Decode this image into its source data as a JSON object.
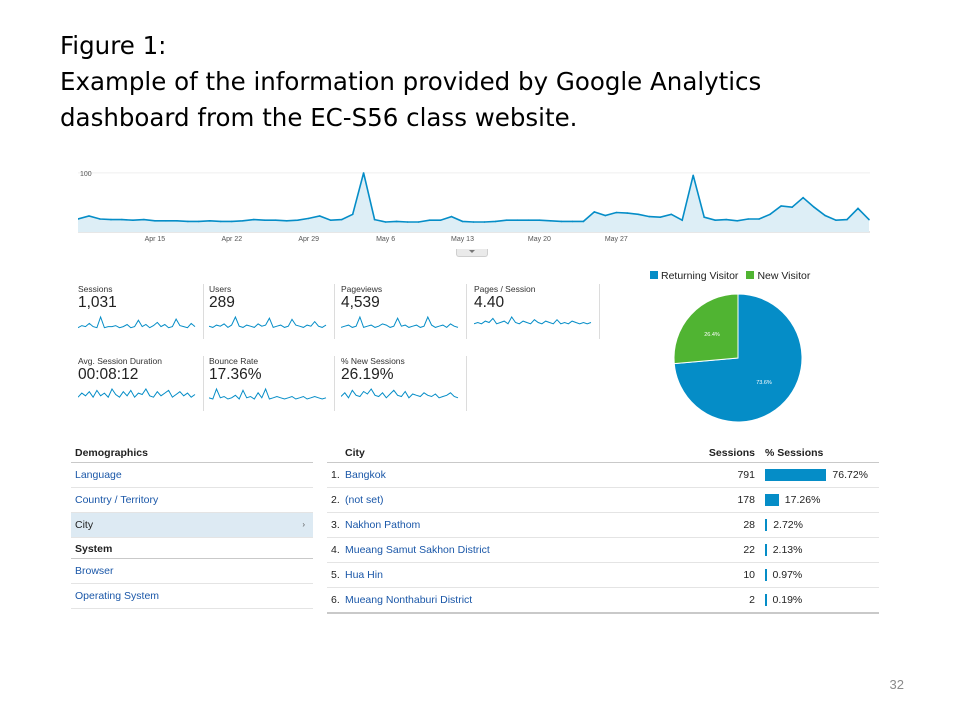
{
  "slide": {
    "title_lines": [
      "Figure 1:",
      "Example of the information provided by Google Analytics",
      "dashboard from the EC-S56 class website."
    ],
    "page_number": "32"
  },
  "timeline": {
    "y_label": "100",
    "x_labels": [
      "Apr 15",
      "Apr 22",
      "Apr 29",
      "May 6",
      "May 13",
      "May 20",
      "May 27"
    ],
    "series": [
      22,
      27,
      22,
      21,
      21,
      20,
      21,
      19,
      19,
      19,
      18,
      18,
      19,
      18,
      18,
      19,
      21,
      20,
      20,
      19,
      20,
      23,
      27,
      20,
      21,
      30,
      100,
      21,
      17,
      18,
      17,
      17,
      20,
      20,
      26,
      18,
      17,
      17,
      18,
      20,
      20,
      20,
      20,
      19,
      18,
      18,
      18,
      34,
      28,
      33,
      32,
      30,
      26,
      25,
      30,
      20,
      96,
      25,
      20,
      21,
      19,
      22,
      22,
      30,
      44,
      42,
      58,
      42,
      28,
      20,
      21,
      40,
      21
    ],
    "ymax": 110,
    "fill": "#ddeef6",
    "line": "#058dc7"
  },
  "metrics": [
    {
      "label": "Sessions",
      "value": "1,031",
      "spark": [
        4,
        6,
        5,
        8,
        5,
        4,
        14,
        4,
        5,
        5,
        6,
        4,
        5,
        7,
        4,
        5,
        11,
        5,
        7,
        4,
        6,
        9,
        5,
        7,
        4,
        5,
        12,
        6,
        5,
        4,
        8,
        5
      ]
    },
    {
      "label": "Users",
      "value": "289",
      "spark": [
        5,
        4,
        6,
        5,
        7,
        4,
        6,
        13,
        5,
        4,
        6,
        5,
        4,
        7,
        5,
        6,
        12,
        4,
        5,
        6,
        4,
        5,
        11,
        6,
        5,
        4,
        6,
        5,
        9,
        5,
        4,
        6
      ]
    },
    {
      "label": "Pageviews",
      "value": "4,539",
      "spark": [
        4,
        5,
        6,
        4,
        5,
        13,
        4,
        5,
        6,
        4,
        5,
        7,
        6,
        4,
        5,
        12,
        5,
        6,
        4,
        5,
        6,
        4,
        5,
        13,
        6,
        4,
        5,
        6,
        4,
        7,
        5,
        4
      ]
    },
    {
      "label": "Pages / Session",
      "value": "4.40",
      "spark": [
        6,
        7,
        6,
        8,
        7,
        10,
        6,
        7,
        8,
        6,
        11,
        7,
        6,
        8,
        7,
        6,
        9,
        7,
        6,
        8,
        7,
        6,
        9,
        6,
        7,
        6,
        8,
        7,
        6,
        7,
        6,
        7
      ]
    },
    {
      "label": "Avg. Session Duration",
      "value": "00:08:12",
      "spark": [
        5,
        8,
        6,
        9,
        5,
        10,
        6,
        8,
        5,
        11,
        7,
        5,
        9,
        6,
        10,
        5,
        8,
        7,
        11,
        6,
        5,
        9,
        6,
        8,
        10,
        5,
        7,
        9,
        6,
        8,
        5,
        7
      ]
    },
    {
      "label": "Bounce Rate",
      "value": "17.36%",
      "spark": [
        5,
        4,
        12,
        5,
        6,
        4,
        5,
        7,
        4,
        11,
        5,
        6,
        4,
        9,
        5,
        12,
        4,
        5,
        6,
        5,
        4,
        5,
        6,
        4,
        5,
        6,
        4,
        5,
        6,
        5,
        4,
        5
      ]
    },
    {
      "label": "% New Sessions",
      "value": "26.19%",
      "spark": [
        6,
        9,
        5,
        11,
        7,
        6,
        10,
        8,
        12,
        7,
        6,
        9,
        5,
        8,
        11,
        7,
        6,
        10,
        5,
        8,
        7,
        6,
        9,
        7,
        6,
        8,
        5,
        6,
        7,
        9,
        6,
        5
      ]
    }
  ],
  "spark_color": "#058dc7",
  "pie": {
    "legend": [
      {
        "label": "Returning Visitor",
        "color": "#058dc7"
      },
      {
        "label": "New Visitor",
        "color": "#50b432"
      }
    ],
    "slices": [
      {
        "label": "73.6%",
        "value": 73.6,
        "color": "#058dc7"
      },
      {
        "label": "26.4%",
        "value": 26.4,
        "color": "#50b432"
      }
    ]
  },
  "demographics": {
    "heading": "Demographics",
    "links": [
      {
        "label": "Language",
        "selected": false
      },
      {
        "label": "Country / Territory",
        "selected": false
      },
      {
        "label": "City",
        "selected": true
      }
    ],
    "system_heading": "System",
    "system_links": [
      {
        "label": "Browser"
      },
      {
        "label": "Operating System"
      }
    ],
    "arrow": "›"
  },
  "city_table": {
    "headers": {
      "city": "City",
      "sessions": "Sessions",
      "pct": "% Sessions"
    },
    "rows": [
      {
        "num": "1.",
        "city": "Bangkok",
        "sessions": "791",
        "pct": "76.72%",
        "share": 76.72
      },
      {
        "num": "2.",
        "city": "(not set)",
        "sessions": "178",
        "pct": "17.26%",
        "share": 17.26
      },
      {
        "num": "3.",
        "city": "Nakhon Pathom",
        "sessions": "28",
        "pct": "2.72%",
        "share": 2.72
      },
      {
        "num": "4.",
        "city": "Mueang Samut Sakhon District",
        "sessions": "22",
        "pct": "2.13%",
        "share": 2.13
      },
      {
        "num": "5.",
        "city": "Hua Hin",
        "sessions": "10",
        "pct": "0.97%",
        "share": 0.97
      },
      {
        "num": "6.",
        "city": "Mueang Nonthaburi District",
        "sessions": "2",
        "pct": "0.19%",
        "share": 0.19
      }
    ]
  }
}
